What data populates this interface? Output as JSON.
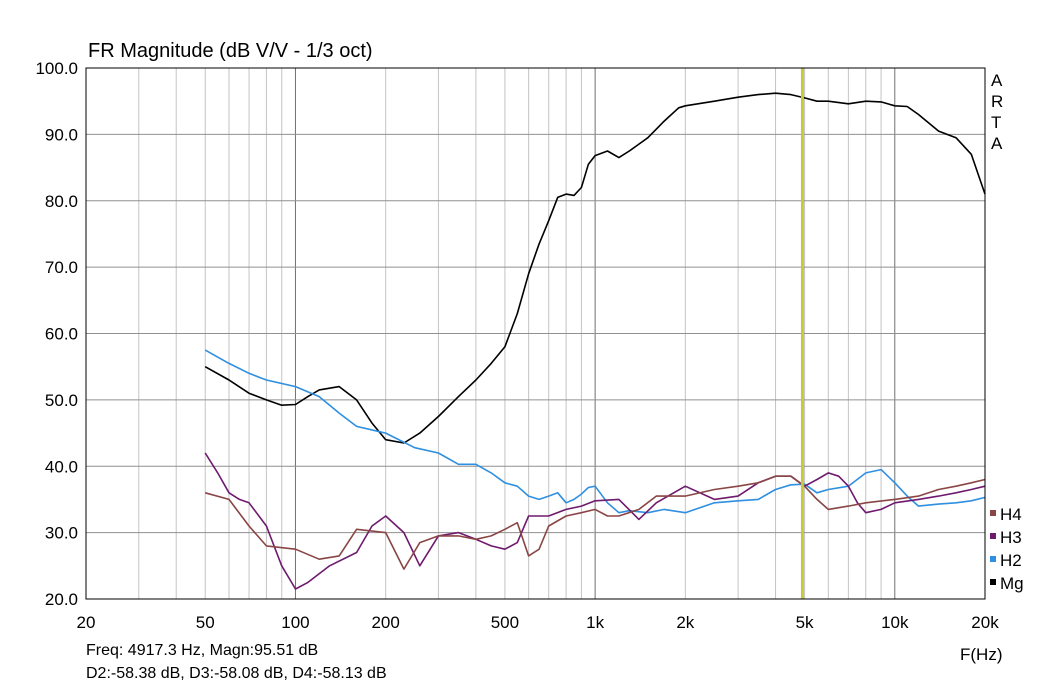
{
  "chart_data": {
    "type": "line",
    "title": "FR Magnitude (dB V/V - 1/3 oct)",
    "xlabel": "F(Hz)",
    "ylabel": "",
    "x_scale": "log",
    "xlim": [
      20,
      20000
    ],
    "ylim": [
      20,
      100
    ],
    "x_ticks": [
      20,
      50,
      100,
      200,
      500,
      1000,
      2000,
      5000,
      10000,
      20000
    ],
    "x_tick_labels": [
      "20",
      "50",
      "100",
      "200",
      "500",
      "1k",
      "2k",
      "5k",
      "10k",
      "20k"
    ],
    "y_ticks": [
      20,
      30,
      40,
      50,
      60,
      70,
      80,
      90,
      100
    ],
    "y_tick_labels": [
      "20.0",
      "30.0",
      "40.0",
      "50.0",
      "60.0",
      "70.0",
      "80.0",
      "90.0",
      "100.0"
    ],
    "grid": true,
    "legend_position": "right",
    "side_label": [
      "A",
      "R",
      "T",
      "A"
    ],
    "cursor": {
      "x": 4917.3,
      "color": "#c8c83c"
    },
    "series": [
      {
        "name": "Mg",
        "color": "#000000",
        "x": [
          50,
          60,
          70,
          80,
          90,
          100,
          110,
          120,
          140,
          160,
          180,
          200,
          230,
          260,
          300,
          350,
          400,
          450,
          500,
          550,
          600,
          650,
          700,
          750,
          800,
          850,
          900,
          950,
          1000,
          1100,
          1200,
          1300,
          1500,
          1700,
          1900,
          2000,
          2500,
          3000,
          3500,
          4000,
          4500,
          5000,
          5500,
          6000,
          7000,
          8000,
          9000,
          10000,
          11000,
          12000,
          14000,
          16000,
          18000,
          20000
        ],
        "y": [
          55.0,
          53.0,
          51.0,
          50.0,
          49.2,
          49.3,
          50.5,
          51.5,
          52.0,
          50.0,
          46.5,
          44.0,
          43.5,
          45.0,
          47.5,
          50.5,
          53.0,
          55.5,
          58.0,
          63.0,
          69.0,
          73.5,
          77.0,
          80.5,
          81.0,
          80.8,
          82.0,
          85.5,
          86.8,
          87.5,
          86.5,
          87.5,
          89.5,
          92.0,
          94.0,
          94.3,
          95.0,
          95.6,
          96.0,
          96.2,
          96.0,
          95.5,
          95.0,
          95.0,
          94.6,
          95.0,
          94.9,
          94.3,
          94.2,
          93.0,
          90.5,
          89.5,
          87.0,
          81.0
        ]
      },
      {
        "name": "H2",
        "color": "#2f8fe0",
        "x": [
          50,
          60,
          70,
          80,
          100,
          120,
          140,
          160,
          200,
          250,
          300,
          350,
          400,
          450,
          500,
          550,
          600,
          650,
          700,
          750,
          800,
          850,
          900,
          950,
          1000,
          1100,
          1200,
          1300,
          1500,
          1700,
          2000,
          2500,
          3000,
          3500,
          4000,
          4500,
          5000,
          5500,
          6000,
          7000,
          8000,
          9000,
          10000,
          11000,
          12000,
          14000,
          16000,
          18000,
          20000
        ],
        "y": [
          57.5,
          55.5,
          54.0,
          53.0,
          52.0,
          50.5,
          48.0,
          46.0,
          45.0,
          42.8,
          42.0,
          40.3,
          40.3,
          39.0,
          37.5,
          37.0,
          35.5,
          35.0,
          35.5,
          36.0,
          34.5,
          35.0,
          35.8,
          36.8,
          37.0,
          34.5,
          33.0,
          33.3,
          33.0,
          33.5,
          33.0,
          34.5,
          34.8,
          35.0,
          36.5,
          37.2,
          37.3,
          36.0,
          36.5,
          37.0,
          39.0,
          39.5,
          37.5,
          35.5,
          34.0,
          34.3,
          34.5,
          34.8,
          35.3
        ]
      },
      {
        "name": "H3",
        "color": "#6e1a6e",
        "x": [
          50,
          55,
          60,
          65,
          70,
          80,
          90,
          100,
          110,
          130,
          160,
          180,
          200,
          230,
          260,
          300,
          350,
          400,
          450,
          500,
          550,
          600,
          700,
          800,
          900,
          1000,
          1200,
          1400,
          1600,
          2000,
          2500,
          3000,
          3500,
          4000,
          4500,
          5000,
          5500,
          6000,
          6500,
          7000,
          7500,
          8000,
          9000,
          10000,
          12000,
          14000,
          16000,
          18000,
          20000
        ],
        "y": [
          42.0,
          39.0,
          36.0,
          35.0,
          34.5,
          31.0,
          25.0,
          21.5,
          22.5,
          25.0,
          27.0,
          31.0,
          32.5,
          30.0,
          25.0,
          29.5,
          30.0,
          29.0,
          28.0,
          27.5,
          28.5,
          32.5,
          32.5,
          33.5,
          34.0,
          34.8,
          35.0,
          32.0,
          34.5,
          37.0,
          35.0,
          35.5,
          37.5,
          38.5,
          38.5,
          37.0,
          38.0,
          39.0,
          38.5,
          37.0,
          34.5,
          33.0,
          33.5,
          34.5,
          35.0,
          35.5,
          36.0,
          36.5,
          37.0
        ]
      },
      {
        "name": "H4",
        "color": "#8a4545",
        "x": [
          50,
          60,
          70,
          80,
          100,
          120,
          140,
          160,
          200,
          230,
          260,
          300,
          350,
          400,
          450,
          500,
          550,
          600,
          650,
          700,
          800,
          900,
          1000,
          1100,
          1200,
          1400,
          1600,
          2000,
          2500,
          3000,
          3500,
          4000,
          4500,
          5000,
          5500,
          6000,
          7000,
          8000,
          10000,
          12000,
          14000,
          16000,
          18000,
          20000
        ],
        "y": [
          36.0,
          35.0,
          31.0,
          28.0,
          27.5,
          26.0,
          26.5,
          30.5,
          30.0,
          24.5,
          28.5,
          29.5,
          29.5,
          29.0,
          29.5,
          30.5,
          31.5,
          26.5,
          27.5,
          31.0,
          32.5,
          33.0,
          33.5,
          32.5,
          32.5,
          33.5,
          35.5,
          35.5,
          36.5,
          37.0,
          37.5,
          38.5,
          38.5,
          37.0,
          35.0,
          33.5,
          34.0,
          34.5,
          35.0,
          35.5,
          36.5,
          37.0,
          37.5,
          38.0
        ]
      }
    ]
  },
  "readout": {
    "line1": "Freq: 4917.3 Hz, Magn:95.51 dB",
    "line2": "D2:-58.38 dB, D3:-58.08 dB, D4:-58.13 dB"
  }
}
